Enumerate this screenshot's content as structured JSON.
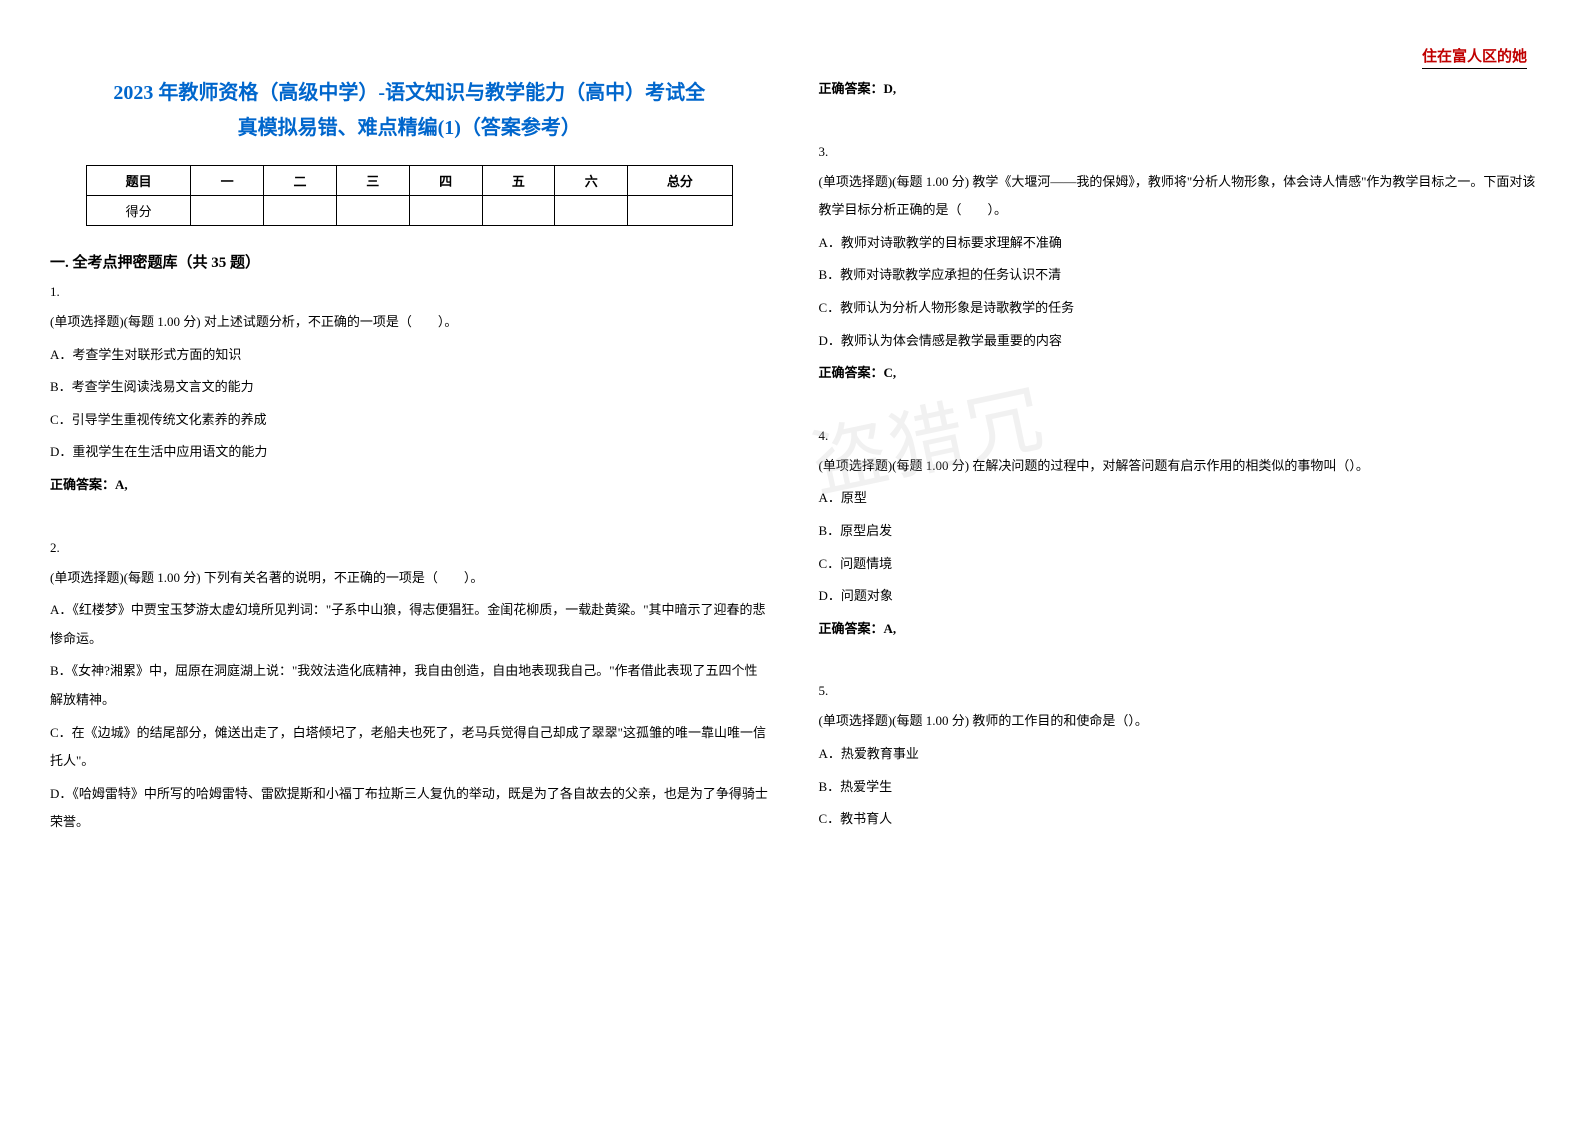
{
  "header_note": "住在富人区的她",
  "title_line1": "2023 年教师资格（高级中学）-语文知识与教学能力（高中）考试全",
  "title_line2": "真模拟易错、难点精编(1)（答案参考）",
  "watermark": "盗猎冗",
  "score_table": {
    "headers": [
      "题目",
      "一",
      "二",
      "三",
      "四",
      "五",
      "六",
      "总分"
    ],
    "row_label": "得分"
  },
  "section_heading": "一. 全考点押密题库（共 35 题）",
  "questions": {
    "q1": {
      "num": "1.",
      "stem": "(单项选择题)(每题 1.00 分) 对上述试题分析，不正确的一项是（　　）。",
      "a": "A．考查学生对联形式方面的知识",
      "b": "B．考查学生阅读浅易文言文的能力",
      "c": "C．引导学生重视传统文化素养的养成",
      "d": "D．重视学生在生活中应用语文的能力",
      "answer": "正确答案：A,"
    },
    "q2": {
      "num": "2.",
      "stem": "(单项选择题)(每题 1.00 分) 下列有关名著的说明，不正确的一项是（　　）。",
      "a": "A．《红楼梦》中贾宝玉梦游太虚幻境所见判词：\"子系中山狼，得志便猖狂。金闺花柳质，一载赴黄粱。\"其中暗示了迎春的悲惨命运。",
      "b": "B．《女神?湘累》中，屈原在洞庭湖上说：\"我效法造化底精神，我自由创造，自由地表现我自己。\"作者借此表现了五四个性解放精神。",
      "c": "C．在《边城》的结尾部分，傩送出走了，白塔倾圮了，老船夫也死了，老马兵觉得自己却成了翠翠\"这孤雏的唯一靠山唯一信托人\"。",
      "d": "D．《哈姆雷特》中所写的哈姆雷特、雷欧提斯和小福丁布拉斯三人复仇的举动，既是为了各自故去的父亲，也是为了争得骑士荣誉。",
      "answer": "正确答案：D,"
    },
    "q3": {
      "num": "3.",
      "stem": "(单项选择题)(每题 1.00 分) 教学《大堰河——我的保姆》，教师将\"分析人物形象，体会诗人情感\"作为教学目标之一。下面对该教学目标分析正确的是（　　）。",
      "a": "A．教师对诗歌教学的目标要求理解不准确",
      "b": "B．教师对诗歌教学应承担的任务认识不清",
      "c": "C．教师认为分析人物形象是诗歌教学的任务",
      "d": "D．教师认为体会情感是教学最重要的内容",
      "answer": "正确答案：C,"
    },
    "q4": {
      "num": "4.",
      "stem": "(单项选择题)(每题 1.00 分) 在解决问题的过程中，对解答问题有启示作用的相类似的事物叫（）。",
      "a": "A．原型",
      "b": "B．原型启发",
      "c": "C．问题情境",
      "d": "D．问题对象",
      "answer": "正确答案：A,"
    },
    "q5": {
      "num": "5.",
      "stem": "(单项选择题)(每题 1.00 分) 教师的工作目的和使命是（）。",
      "a": "A．热爱教育事业",
      "b": "B．热爱学生",
      "c": "C．教书育人"
    }
  }
}
